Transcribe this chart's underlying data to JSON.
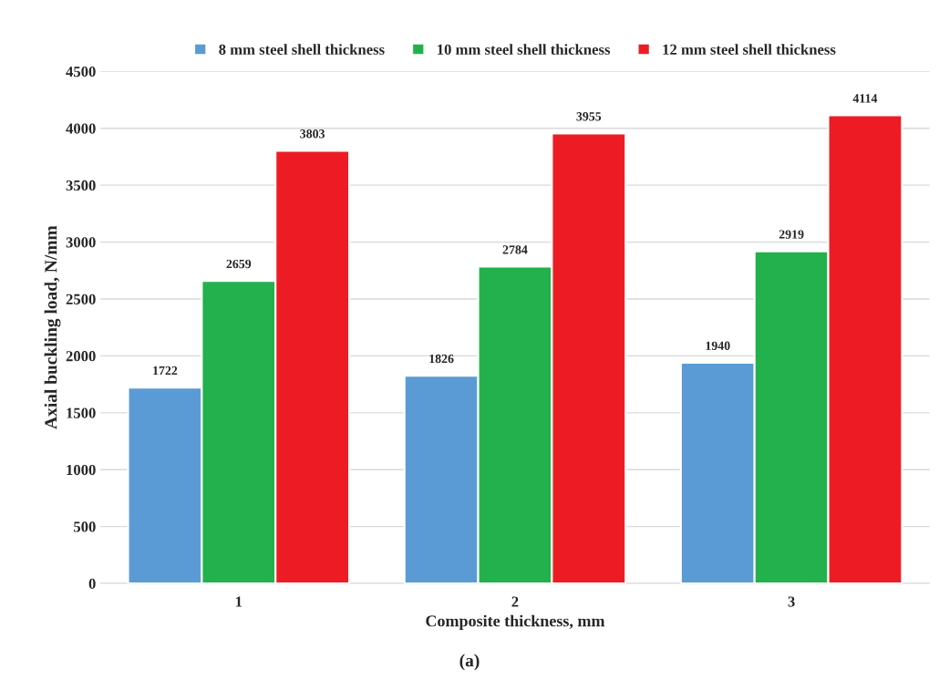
{
  "chart_data": {
    "type": "bar",
    "xlabel": "Composite thickness, mm",
    "ylabel": "Axial buckling load, N/mm",
    "categories": [
      "1",
      "2",
      "3"
    ],
    "series": [
      {
        "name": "8 mm steel shell thickness",
        "color": "#5b9bd5",
        "values": [
          1722,
          1826,
          1940
        ]
      },
      {
        "name": "10 mm steel shell thickness",
        "color": "#22b14c",
        "values": [
          2659,
          2784,
          2919
        ]
      },
      {
        "name": "12 mm steel shell thickness",
        "color": "#ed1c24",
        "values": [
          3803,
          3955,
          4114
        ]
      }
    ],
    "ylim": [
      0,
      4500
    ],
    "yticks": [
      0,
      500,
      1000,
      1500,
      2000,
      2500,
      3000,
      3500,
      4000,
      4500
    ],
    "grid": "y",
    "legend": "top",
    "data_labels": true,
    "annotations": [
      "(a)"
    ]
  }
}
